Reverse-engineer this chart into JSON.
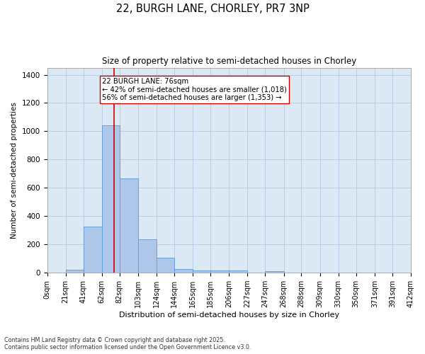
{
  "title1": "22, BURGH LANE, CHORLEY, PR7 3NP",
  "title2": "Size of property relative to semi-detached houses in Chorley",
  "xlabel": "Distribution of semi-detached houses by size in Chorley",
  "ylabel": "Number of semi-detached properties",
  "bin_labels": [
    "0sqm",
    "21sqm",
    "41sqm",
    "62sqm",
    "82sqm",
    "103sqm",
    "124sqm",
    "144sqm",
    "165sqm",
    "185sqm",
    "206sqm",
    "227sqm",
    "247sqm",
    "268sqm",
    "288sqm",
    "309sqm",
    "330sqm",
    "350sqm",
    "371sqm",
    "391sqm",
    "412sqm"
  ],
  "bin_edges": [
    0,
    21,
    41,
    62,
    82,
    103,
    124,
    144,
    165,
    185,
    206,
    227,
    247,
    268,
    288,
    309,
    330,
    350,
    371,
    391,
    412
  ],
  "bar_heights": [
    0,
    20,
    325,
    1040,
    665,
    235,
    105,
    25,
    15,
    15,
    15,
    0,
    10,
    0,
    0,
    0,
    0,
    0,
    0,
    0
  ],
  "bar_color": "#aec6e8",
  "bar_edgecolor": "#5b9bd5",
  "vline_x": 76,
  "vline_color": "#cc0000",
  "annotation_text": "22 BURGH LANE: 76sqm\n← 42% of semi-detached houses are smaller (1,018)\n56% of semi-detached houses are larger (1,353) →",
  "ylim": [
    0,
    1450
  ],
  "yticks": [
    0,
    200,
    400,
    600,
    800,
    1000,
    1200,
    1400
  ],
  "background_color": "#ffffff",
  "ax_background": "#dce9f5",
  "grid_color": "#b8cfe8",
  "footer_line1": "Contains HM Land Registry data © Crown copyright and database right 2025.",
  "footer_line2": "Contains public sector information licensed under the Open Government Licence v3.0."
}
